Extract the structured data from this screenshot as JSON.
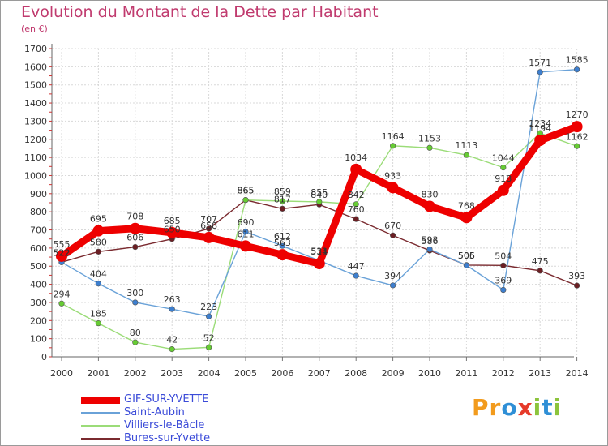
{
  "header": {
    "title": "Evolution du Montant de la Dette par Habitant",
    "unit": "(en €)"
  },
  "logo": {
    "letters": [
      "P",
      "r",
      "o",
      "x",
      "i",
      "t",
      "i"
    ],
    "colors": [
      "#f29b1d",
      "#f29b1d",
      "#2f8fd6",
      "#e63a2a",
      "#8cc43c",
      "#2f8fd6",
      "#8cc43c"
    ]
  },
  "chart_data": {
    "type": "line",
    "title": "Evolution du Montant de la Dette par Habitant",
    "ylabel": "(en €)",
    "xlabel": "",
    "ylim": [
      0,
      1700
    ],
    "yticks": [
      0,
      100,
      200,
      300,
      400,
      500,
      600,
      700,
      800,
      900,
      1000,
      1100,
      1200,
      1300,
      1400,
      1500,
      1600,
      1700
    ],
    "x": [
      "2000",
      "2001",
      "2002",
      "2003",
      "2004",
      "2005",
      "2006",
      "2007",
      "2008",
      "2009",
      "2010",
      "2011",
      "2012",
      "2013",
      "2014"
    ],
    "grid": true,
    "legend_position": "bottom-left",
    "series": [
      {
        "name": "Bures-sur-Yvette",
        "color": "#6b1f24",
        "line_color": "#7a2a2f",
        "values": [
          522,
          580,
          606,
          650,
          707,
          865,
          817,
          840,
          760,
          670,
          586,
          506,
          504,
          475,
          393
        ]
      },
      {
        "name": "Villiers-le-Bâcle",
        "color": "#66cc33",
        "line_color": "#9bdc78",
        "values": [
          294,
          185,
          80,
          42,
          52,
          865,
          859,
          855,
          842,
          1164,
          1153,
          1113,
          1044,
          1234,
          1162
        ]
      },
      {
        "name": "Saint-Aubin",
        "color": "#3d7fcf",
        "line_color": "#6aa2d8",
        "values": [
          522,
          404,
          300,
          263,
          223,
          690,
          612,
          531,
          447,
          394,
          593,
          505,
          369,
          1571,
          1585
        ]
      },
      {
        "name": "GIF-SUR-YVETTE",
        "color": "#ee0000",
        "line_color": "#ee0000",
        "values": [
          555,
          695,
          708,
          685,
          658,
          611,
          563,
          514,
          1034,
          933,
          830,
          768,
          918,
          1194,
          1270
        ]
      }
    ]
  }
}
